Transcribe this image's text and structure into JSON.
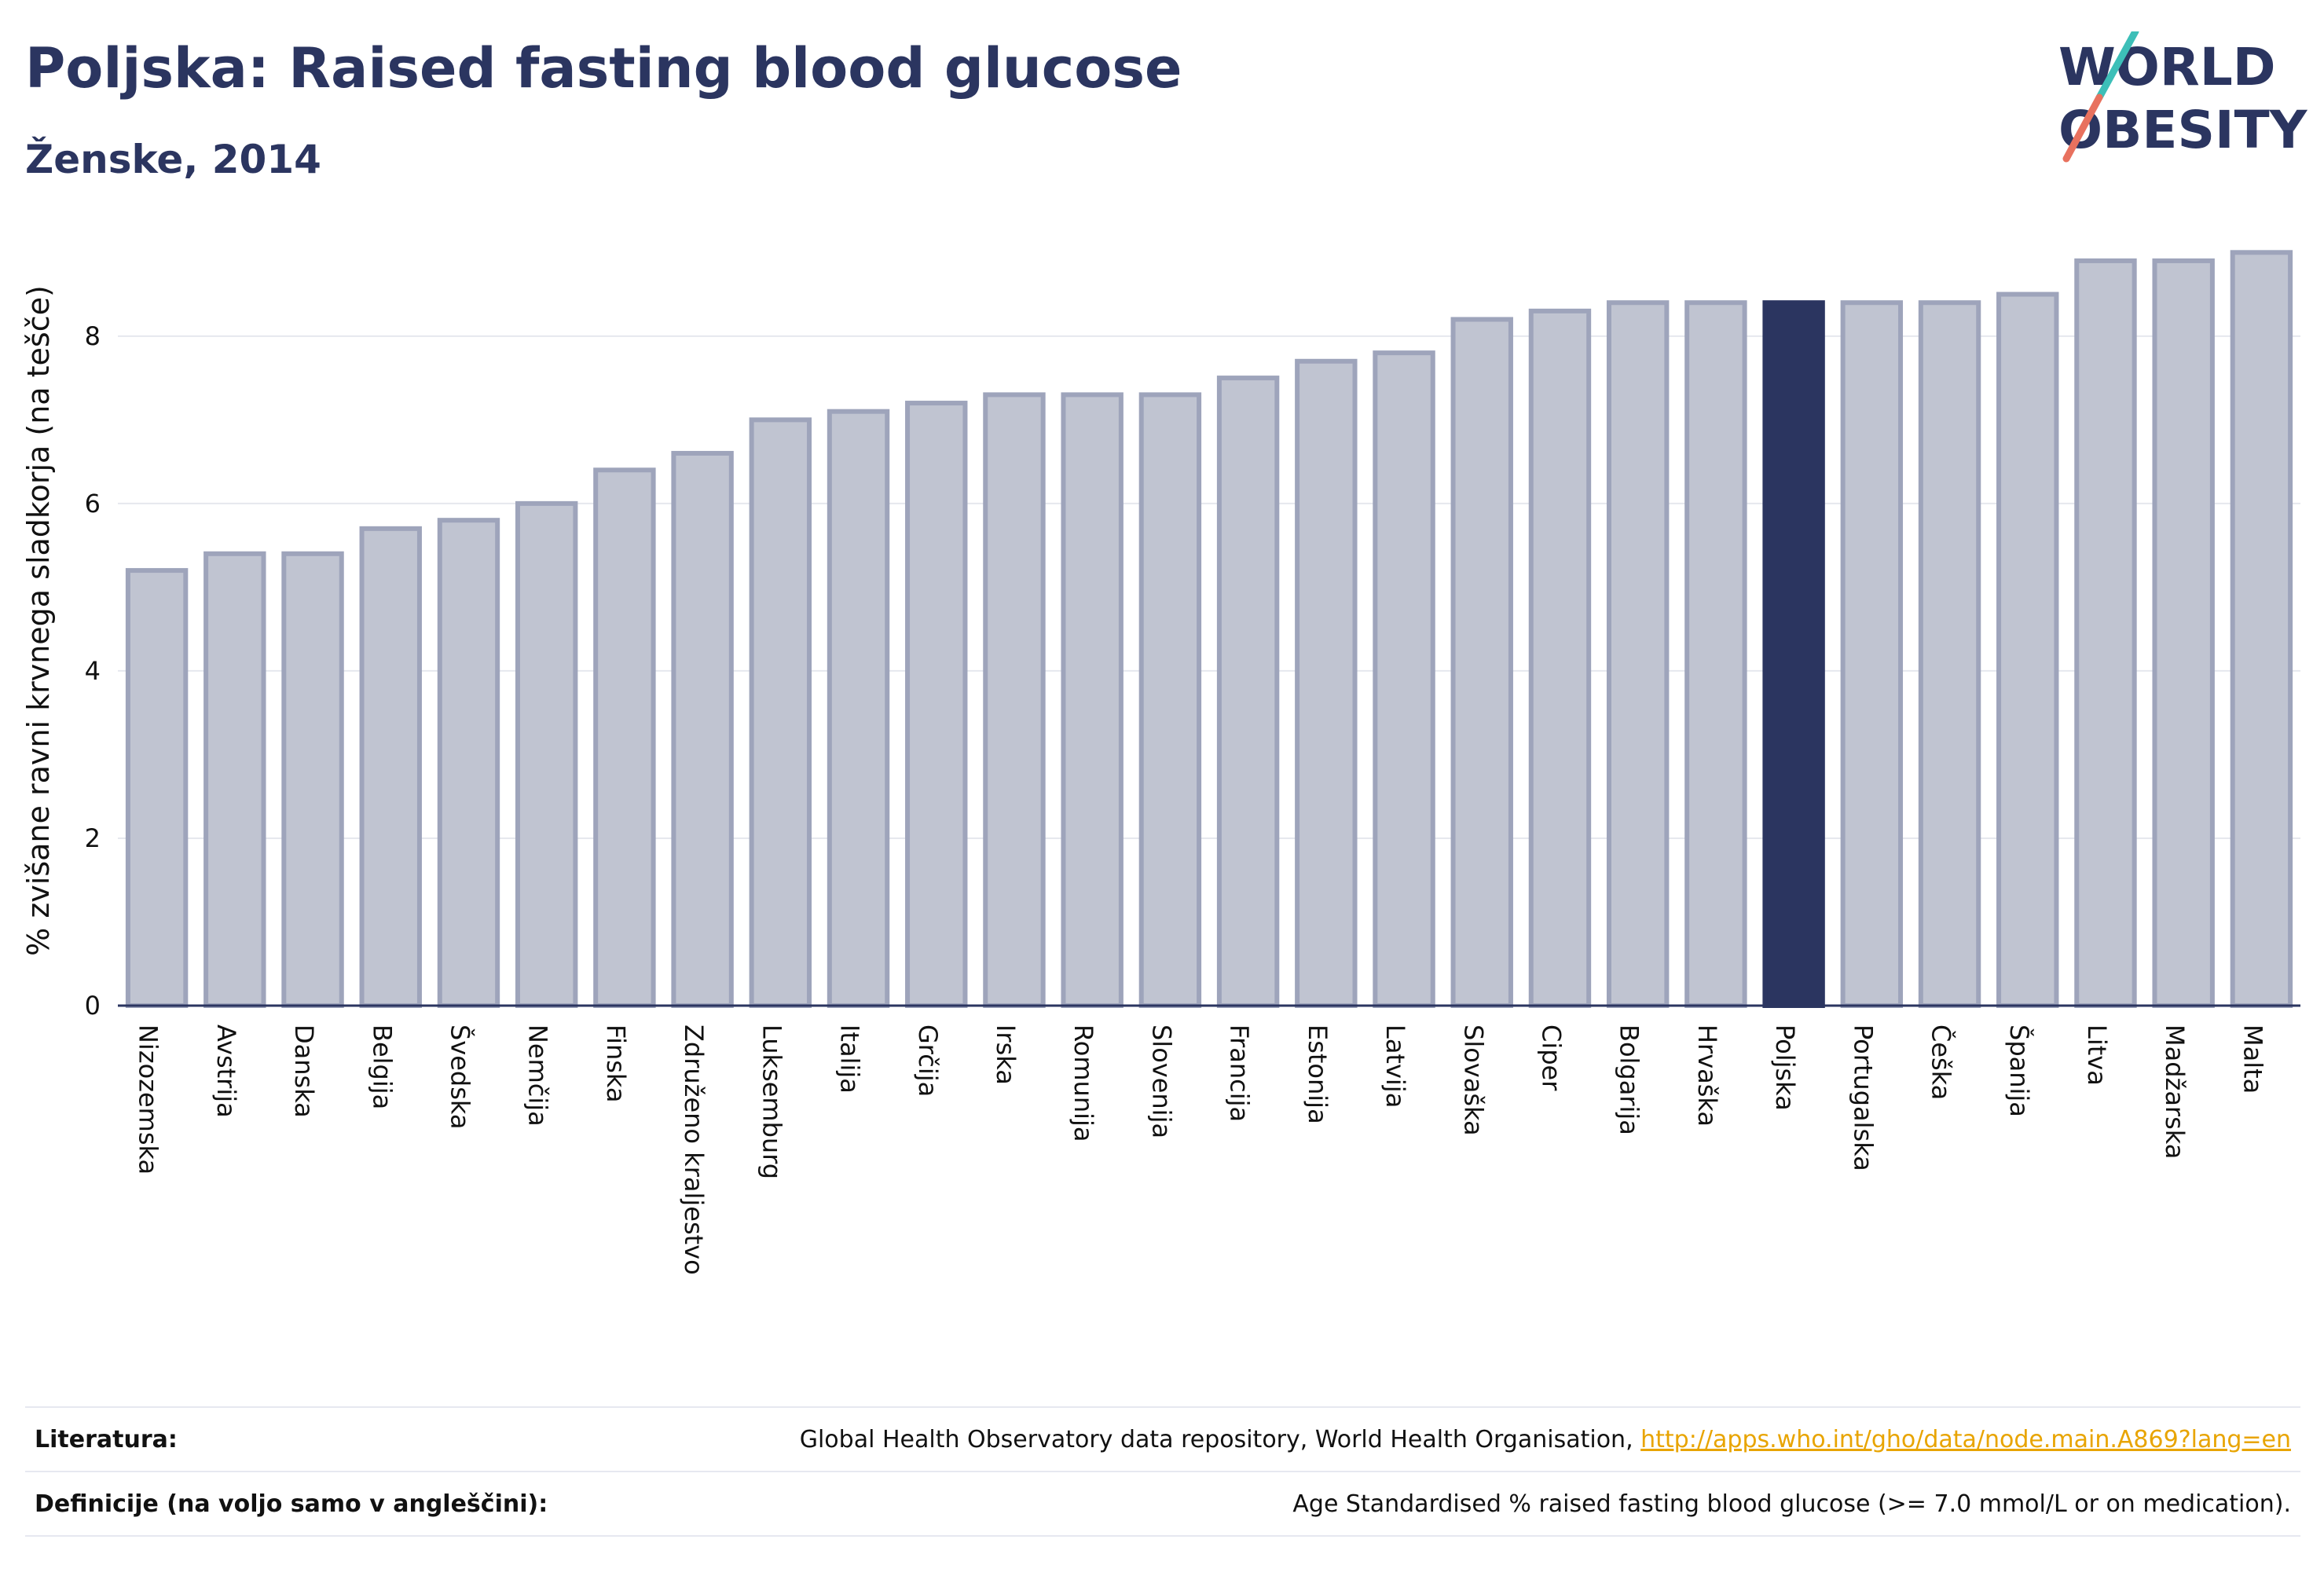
{
  "header": {
    "title": "Poljska: Raised fasting blood glucose",
    "subtitle": "Ženske, 2014"
  },
  "logo": {
    "line1": "WORLD",
    "line2": "OBESITY"
  },
  "colors": {
    "highlight": "#2b3560",
    "bar_fill": "#c0c4d1",
    "bar_stroke": "#9ea4bb",
    "grid": "#e6e8ee",
    "logo_teal": "#3dbfb8",
    "logo_coral": "#e8715e"
  },
  "chart_data": {
    "type": "bar",
    "title": "Poljska: Raised fasting blood glucose",
    "subtitle": "Ženske, 2014",
    "ylabel": "% zvišane ravni krvnega sladkorja (na tešče)",
    "xlabel": "",
    "ylim": [
      0,
      9.2
    ],
    "yticks": [
      0,
      2,
      4,
      6,
      8
    ],
    "grid": true,
    "highlight": "Poljska",
    "categories": [
      "Nizozemska",
      "Avstrija",
      "Danska",
      "Belgija",
      "Švedska",
      "Nemčija",
      "Finska",
      "Združeno kraljestvo",
      "Luksemburg",
      "Italija",
      "Grčija",
      "Irska",
      "Romunija",
      "Slovenija",
      "Francija",
      "Estonija",
      "Latvija",
      "Slovaška",
      "Ciper",
      "Bolgarija",
      "Hrvaška",
      "Poljska",
      "Portugalska",
      "Češka",
      "Španija",
      "Litva",
      "Madžarska",
      "Malta"
    ],
    "values": [
      5.2,
      5.4,
      5.4,
      5.7,
      5.8,
      6.0,
      6.4,
      6.6,
      7.0,
      7.1,
      7.2,
      7.3,
      7.3,
      7.3,
      7.5,
      7.7,
      7.8,
      8.2,
      8.3,
      8.4,
      8.4,
      8.4,
      8.4,
      8.4,
      8.5,
      8.9,
      8.9,
      9.0
    ]
  },
  "footer": {
    "references_label": "Literatura:",
    "references_text": "Global Health Observatory data repository, World Health Organisation, ",
    "references_link": "http://apps.who.int/gho/data/node.main.A869?lang=en",
    "definitions_label": "Definicije (na voljo samo v angleščini):",
    "definitions_text": "Age Standardised % raised fasting blood glucose (>= 7.0 mmol/L or on medication)."
  }
}
